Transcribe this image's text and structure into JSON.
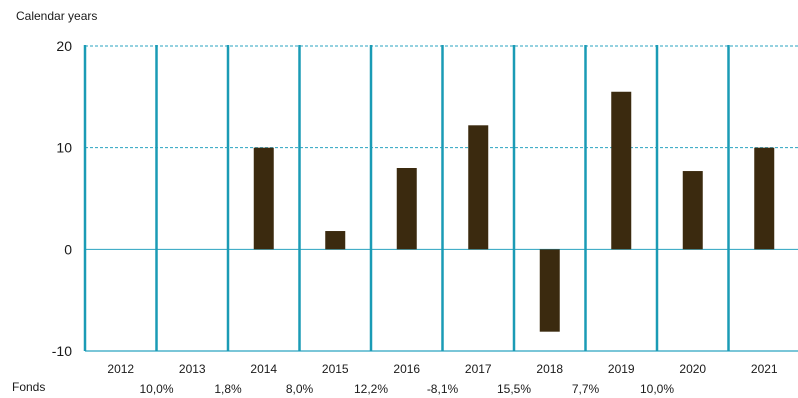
{
  "caption": "Calendar years",
  "legend_row_label": "Fonds",
  "colors": {
    "bar": "#3b2a0f",
    "frame": "#1a9bb5",
    "grid": "#2aa3c0",
    "text": "#1a1a1a"
  },
  "chart_data": {
    "type": "bar",
    "categories": [
      "2012",
      "2013",
      "2014",
      "2015",
      "2016",
      "2017",
      "2018",
      "2019",
      "2020",
      "2021"
    ],
    "values": [
      null,
      null,
      10.0,
      1.8,
      8.0,
      12.2,
      -8.1,
      15.5,
      7.7,
      10.0
    ],
    "ylim": [
      -10,
      20
    ],
    "yticks": [
      20,
      10,
      0,
      -10
    ],
    "grid": true,
    "row_labels": [
      "10,0%",
      "1,8%",
      "8,0%",
      "12,2%",
      "-8,1%",
      "15,5%",
      "7,7%",
      "10,0%"
    ]
  }
}
